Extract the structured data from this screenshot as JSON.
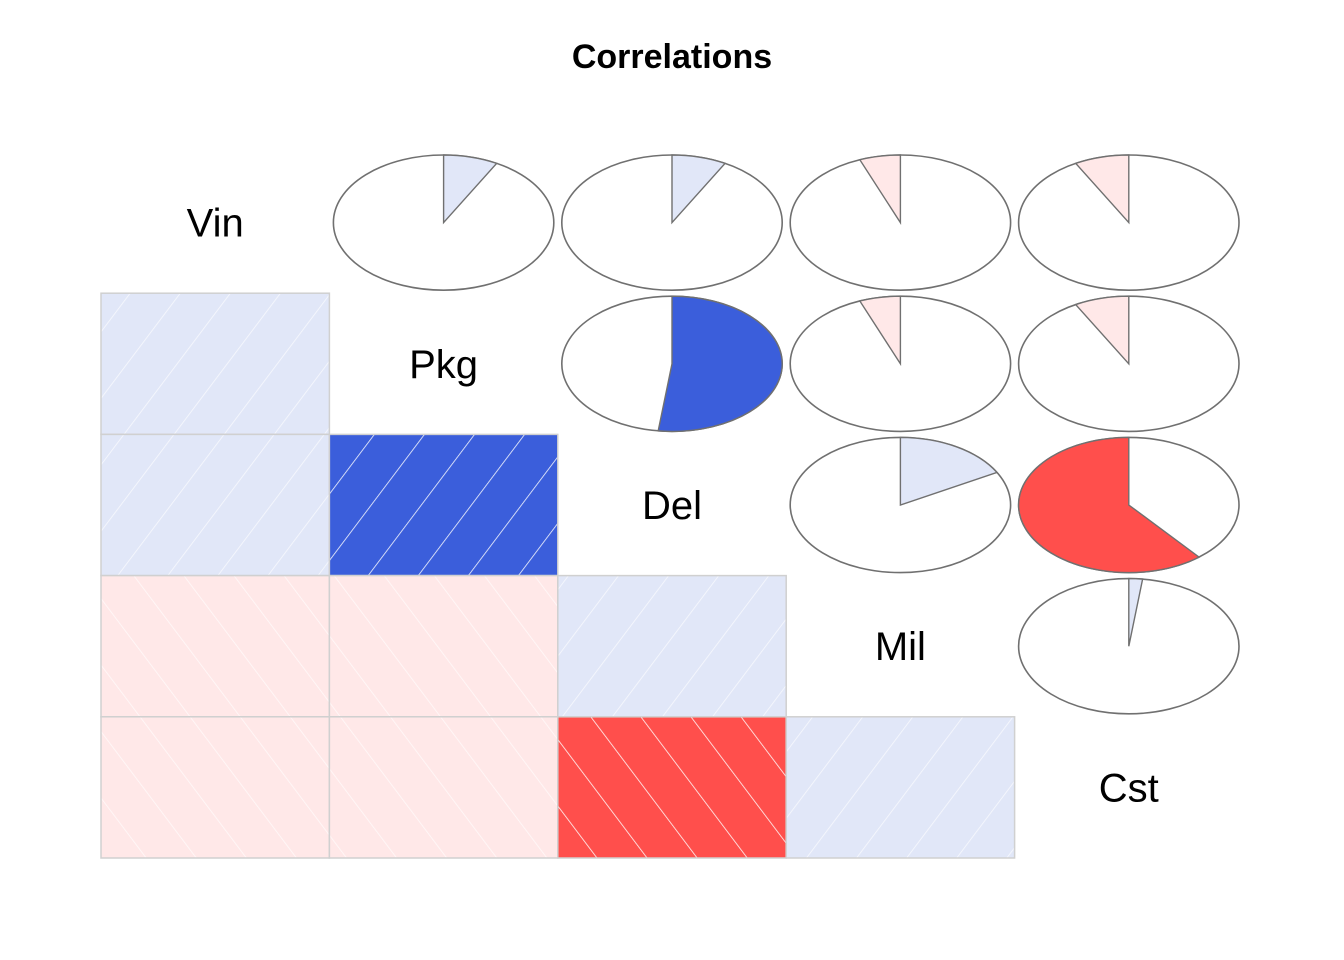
{
  "chart_data": {
    "type": "heatmap",
    "title": "Correlations",
    "variables": [
      "Vin",
      "Pkg",
      "Del",
      "Mil",
      "Cst"
    ],
    "lower_panel": "shade",
    "upper_panel": "pie",
    "correlations": [
      [
        1.0,
        0.08,
        0.08,
        -0.06,
        -0.08
      ],
      [
        0.08,
        1.0,
        0.52,
        -0.06,
        -0.08
      ],
      [
        0.08,
        0.52,
        1.0,
        0.17,
        -0.61
      ],
      [
        -0.06,
        -0.06,
        0.17,
        1.0,
        0.02
      ],
      [
        -0.08,
        -0.08,
        -0.61,
        0.02,
        1.0
      ]
    ],
    "color_scale": {
      "positive": "#3B5EDB",
      "negative": "#FF4F4C",
      "neutral": "#FFFFFF",
      "weak_positive": "#E1E7F8",
      "weak_negative": "#FFE8E8"
    },
    "pie_outline_color": "#707070",
    "cell_border_color": "#D0D0D0"
  }
}
